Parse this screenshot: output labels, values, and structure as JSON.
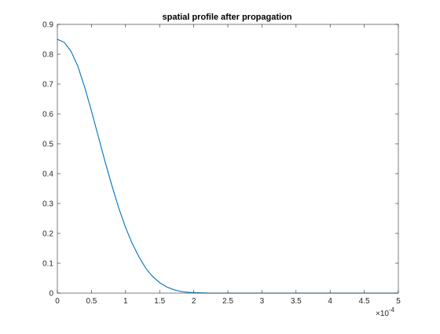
{
  "chart_data": {
    "type": "line",
    "title": "spatial profile after propagation",
    "xlabel": "",
    "ylabel": "",
    "xlim": [
      0,
      0.0005
    ],
    "ylim": [
      0,
      0.9
    ],
    "x_ticks": [
      0,
      5e-05,
      0.0001,
      0.00015,
      0.0002,
      0.00025,
      0.0003,
      0.00035,
      0.0004,
      0.00045,
      0.0005
    ],
    "x_tick_labels": [
      "0",
      "0.5",
      "1",
      "1.5",
      "2",
      "2.5",
      "3",
      "3.5",
      "4",
      "4.5",
      "5"
    ],
    "x_exponent_label": "×10",
    "x_exponent_power": "-4",
    "y_ticks": [
      0,
      0.1,
      0.2,
      0.3,
      0.4,
      0.5,
      0.6,
      0.7,
      0.8,
      0.9
    ],
    "y_tick_labels": [
      "0",
      "0.1",
      "0.2",
      "0.3",
      "0.4",
      "0.5",
      "0.6",
      "0.7",
      "0.8",
      "0.9"
    ],
    "grid": false,
    "box": true,
    "series": [
      {
        "color": "#0072bd",
        "x": [
          0,
          1e-05,
          2e-05,
          3e-05,
          4e-05,
          5e-05,
          6e-05,
          7e-05,
          8e-05,
          9e-05,
          0.0001,
          0.00011,
          0.00012,
          0.00013,
          0.00014,
          0.00015,
          0.00016,
          0.00017,
          0.00018,
          0.00019,
          0.0002,
          0.00022,
          0.00025,
          0.0003,
          0.00035,
          0.0004,
          0.00045,
          0.0005
        ],
        "y": [
          0.85,
          0.84,
          0.81,
          0.76,
          0.69,
          0.61,
          0.525,
          0.44,
          0.36,
          0.285,
          0.22,
          0.165,
          0.12,
          0.082,
          0.055,
          0.035,
          0.021,
          0.012,
          0.006,
          0.003,
          0.0015,
          0.0003,
          0.0,
          0.0,
          0.0,
          0.0,
          0.0,
          0.0
        ]
      }
    ]
  }
}
